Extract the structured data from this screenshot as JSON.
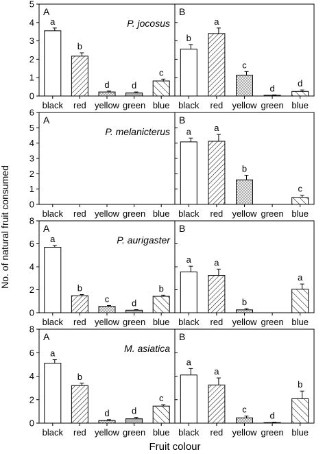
{
  "ylabel": "No. of natural fruit consumed",
  "xlabel": "Fruit colour",
  "categories": [
    "black",
    "red",
    "yellow",
    "green",
    "blue"
  ],
  "colors": {
    "frame": "#000000",
    "bar_edge": "#000000",
    "solid_fill": "#ffffff",
    "gray": "#b8b8b8",
    "cross": "#9a9a9a"
  },
  "chart_data": [
    {
      "type": "bar",
      "species": "P. jocosus",
      "ylim": [
        0,
        5
      ],
      "yticks": [
        0,
        1,
        2,
        3,
        4,
        5
      ],
      "panels": [
        {
          "panel_label": "A",
          "show_species": true,
          "values": [
            3.55,
            2.17,
            0.22,
            0.17,
            0.82
          ],
          "errors": [
            0.15,
            0.18,
            0.05,
            0.05,
            0.1
          ],
          "letters": [
            "a",
            "b",
            "d",
            "d",
            "c"
          ]
        },
        {
          "panel_label": "B",
          "show_species": false,
          "values": [
            2.55,
            3.4,
            1.13,
            0.04,
            0.25
          ],
          "errors": [
            0.25,
            0.3,
            0.2,
            0.02,
            0.08
          ],
          "letters": [
            "b",
            "a",
            "c",
            "d",
            "d"
          ]
        }
      ]
    },
    {
      "type": "bar",
      "species": "P. melanicterus",
      "ylim": [
        0,
        6
      ],
      "yticks": [
        0,
        1,
        2,
        3,
        4,
        5,
        6
      ],
      "panels": [
        {
          "panel_label": "A",
          "show_species": true,
          "values": [
            0,
            0,
            0,
            0,
            0
          ],
          "errors": [
            0,
            0,
            0,
            0,
            0
          ],
          "letters": [
            "",
            "",
            "",
            "",
            ""
          ]
        },
        {
          "panel_label": "B",
          "show_species": false,
          "values": [
            4.08,
            4.12,
            1.6,
            0,
            0.45
          ],
          "errors": [
            0.25,
            0.45,
            0.3,
            0,
            0.15
          ],
          "letters": [
            "a",
            "a",
            "b",
            "",
            "c"
          ]
        }
      ]
    },
    {
      "type": "bar",
      "species": "P. aurigaster",
      "ylim": [
        0,
        8
      ],
      "yticks": [
        0,
        2,
        4,
        6,
        8
      ],
      "panels": [
        {
          "panel_label": "A",
          "show_species": true,
          "values": [
            5.7,
            1.48,
            0.55,
            0.22,
            1.43
          ],
          "errors": [
            0.15,
            0.1,
            0.08,
            0.05,
            0.1
          ],
          "letters": [
            "a",
            "b",
            "c",
            "d",
            "b"
          ]
        },
        {
          "panel_label": "B",
          "show_species": false,
          "values": [
            3.55,
            3.25,
            0.25,
            0,
            2.05
          ],
          "errors": [
            0.5,
            0.55,
            0.1,
            0,
            0.45
          ],
          "letters": [
            "a",
            "a",
            "b",
            "",
            "a"
          ]
        }
      ]
    },
    {
      "type": "bar",
      "species": "M. asiatica",
      "ylim": [
        0,
        8
      ],
      "yticks": [
        0,
        2,
        4,
        6,
        8
      ],
      "panels": [
        {
          "panel_label": "A",
          "show_species": true,
          "values": [
            5.1,
            3.2,
            0.22,
            0.37,
            1.45
          ],
          "errors": [
            0.3,
            0.2,
            0.08,
            0.12,
            0.12
          ],
          "letters": [
            "a",
            "b",
            "d",
            "d",
            "c"
          ]
        },
        {
          "panel_label": "B",
          "show_species": false,
          "values": [
            4.1,
            3.25,
            0.45,
            0.05,
            2.08
          ],
          "errors": [
            0.55,
            0.6,
            0.15,
            0.03,
            0.65
          ],
          "letters": [
            "a",
            "a",
            "c",
            "d",
            "b"
          ]
        }
      ]
    }
  ]
}
